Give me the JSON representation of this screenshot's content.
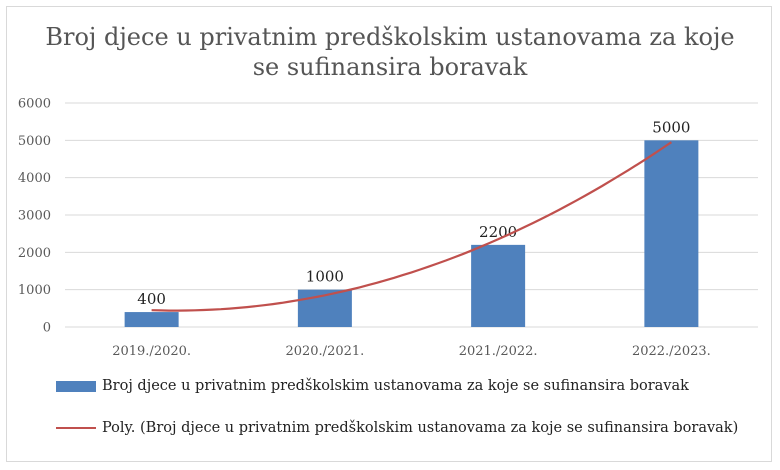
{
  "chart_data": {
    "type": "bar",
    "title_lines": [
      "Broj djece u privatnim predškolskim ustanovama za koje",
      "se sufinansira boravak"
    ],
    "categories": [
      "2019./2020.",
      "2020./2021.",
      "2021./2022.",
      "2022./2023."
    ],
    "series": [
      {
        "name": "Broj djece u privatnim predškolskim ustanovama za koje se sufinansira boravak",
        "values": [
          400,
          1000,
          2200,
          5000
        ]
      }
    ],
    "trendline": {
      "type": "polynomial",
      "name": "Poly. (Broj djece u privatnim predškolskim ustanovama za koje se sufinansira boravak)"
    },
    "data_labels": [
      "400",
      "1000",
      "2200",
      "5000"
    ],
    "ylim": [
      0,
      6000
    ],
    "yticks": [
      0,
      1000,
      2000,
      3000,
      4000,
      5000,
      6000
    ],
    "grid": true,
    "legend_position": "bottom",
    "colors": {
      "bar": "#4f81bd",
      "trend": "#c0504d",
      "grid": "#d9d9d9"
    }
  }
}
